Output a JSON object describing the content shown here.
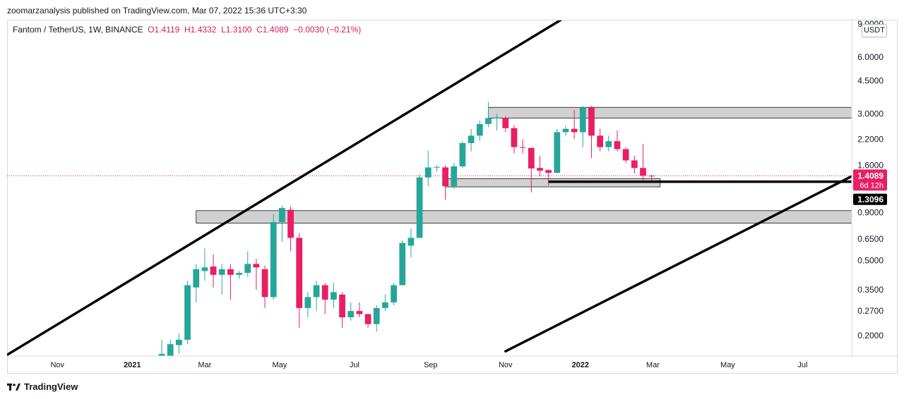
{
  "header": {
    "publisher": "zoomarzanalysis published on TradingView.com, Mar 07, 2022 15:36 UTC+3:30"
  },
  "legend": {
    "symbol": "Fantom / TetherUS, 1W, BINANCE",
    "open": "O1.4119",
    "high": "H1.4332",
    "low": "L1.3100",
    "close": "C1.4089",
    "change": "−0.0030 (−0.21%)"
  },
  "currency": "USDT",
  "footer": {
    "brand": "TradingView"
  },
  "colors": {
    "up": "#26a69a",
    "down": "#e91e63",
    "zone_fill": "#d1d1d1",
    "trendline": "#000000",
    "price_label": "#e91e63",
    "support_label": "#000000"
  },
  "chart_data": {
    "type": "candlestick",
    "title": "Fantom / TetherUS, 1W, BINANCE",
    "y_scale": "log",
    "ylim": [
      0.16,
      9.0
    ],
    "y_ticks": [
      "9.0000",
      "6.0000",
      "4.5000",
      "3.0000",
      "2.2000",
      "1.6000",
      "0.9000",
      "0.6500",
      "0.5000",
      "0.3500",
      "0.2700",
      "0.2000"
    ],
    "x_ticks": [
      "Nov",
      "2021",
      "Mar",
      "May",
      "Jul",
      "Sep",
      "Nov",
      "2022",
      "Mar",
      "May",
      "Jul"
    ],
    "x_tick_dates": [
      "2020-11-01",
      "2021-01-01",
      "2021-03-01",
      "2021-05-01",
      "2021-07-01",
      "2021-09-01",
      "2021-11-01",
      "2022-01-01",
      "2022-03-01",
      "2022-05-01",
      "2022-07-01"
    ],
    "xlim": [
      "2020-09-21",
      "2022-08-10"
    ],
    "last_price": {
      "value": 1.4089,
      "label": "1.4089",
      "countdown": "6d 12h"
    },
    "support_label": {
      "value": 1.3096,
      "label": "1.3096"
    },
    "candles": [
      {
        "date": "2021-01-25",
        "o": 0.12,
        "h": 0.19,
        "l": 0.11,
        "c": 0.16
      },
      {
        "date": "2021-02-01",
        "o": 0.155,
        "h": 0.19,
        "l": 0.145,
        "c": 0.18
      },
      {
        "date": "2021-02-08",
        "o": 0.178,
        "h": 0.205,
        "l": 0.16,
        "c": 0.19
      },
      {
        "date": "2021-02-15",
        "o": 0.19,
        "h": 0.39,
        "l": 0.18,
        "c": 0.37
      },
      {
        "date": "2021-02-22",
        "o": 0.36,
        "h": 0.48,
        "l": 0.3,
        "c": 0.45
      },
      {
        "date": "2021-03-01",
        "o": 0.44,
        "h": 0.58,
        "l": 0.39,
        "c": 0.46
      },
      {
        "date": "2021-03-08",
        "o": 0.465,
        "h": 0.54,
        "l": 0.36,
        "c": 0.42
      },
      {
        "date": "2021-03-15",
        "o": 0.42,
        "h": 0.48,
        "l": 0.33,
        "c": 0.45
      },
      {
        "date": "2021-03-22",
        "o": 0.45,
        "h": 0.48,
        "l": 0.31,
        "c": 0.42
      },
      {
        "date": "2021-03-29",
        "o": 0.42,
        "h": 0.44,
        "l": 0.4,
        "c": 0.43
      },
      {
        "date": "2021-04-05",
        "o": 0.43,
        "h": 0.56,
        "l": 0.41,
        "c": 0.48
      },
      {
        "date": "2021-04-12",
        "o": 0.48,
        "h": 0.51,
        "l": 0.35,
        "c": 0.46
      },
      {
        "date": "2021-04-19",
        "o": 0.45,
        "h": 0.47,
        "l": 0.28,
        "c": 0.32
      },
      {
        "date": "2021-04-26",
        "o": 0.32,
        "h": 0.88,
        "l": 0.31,
        "c": 0.8
      },
      {
        "date": "2021-05-03",
        "o": 0.8,
        "h": 0.98,
        "l": 0.63,
        "c": 0.95
      },
      {
        "date": "2021-05-10",
        "o": 0.93,
        "h": 0.97,
        "l": 0.56,
        "c": 0.66
      },
      {
        "date": "2021-05-17",
        "o": 0.66,
        "h": 0.7,
        "l": 0.22,
        "c": 0.28
      },
      {
        "date": "2021-05-24",
        "o": 0.28,
        "h": 0.34,
        "l": 0.25,
        "c": 0.32
      },
      {
        "date": "2021-05-31",
        "o": 0.32,
        "h": 0.39,
        "l": 0.27,
        "c": 0.37
      },
      {
        "date": "2021-06-07",
        "o": 0.37,
        "h": 0.38,
        "l": 0.26,
        "c": 0.31
      },
      {
        "date": "2021-06-14",
        "o": 0.31,
        "h": 0.38,
        "l": 0.28,
        "c": 0.34
      },
      {
        "date": "2021-06-21",
        "o": 0.33,
        "h": 0.34,
        "l": 0.22,
        "c": 0.25
      },
      {
        "date": "2021-06-28",
        "o": 0.25,
        "h": 0.3,
        "l": 0.24,
        "c": 0.27
      },
      {
        "date": "2021-07-05",
        "o": 0.27,
        "h": 0.3,
        "l": 0.25,
        "c": 0.26
      },
      {
        "date": "2021-07-12",
        "o": 0.26,
        "h": 0.26,
        "l": 0.22,
        "c": 0.23
      },
      {
        "date": "2021-07-19",
        "o": 0.23,
        "h": 0.29,
        "l": 0.21,
        "c": 0.28
      },
      {
        "date": "2021-07-26",
        "o": 0.28,
        "h": 0.33,
        "l": 0.27,
        "c": 0.3
      },
      {
        "date": "2021-08-02",
        "o": 0.3,
        "h": 0.38,
        "l": 0.29,
        "c": 0.37
      },
      {
        "date": "2021-08-09",
        "o": 0.37,
        "h": 0.64,
        "l": 0.37,
        "c": 0.62
      },
      {
        "date": "2021-08-16",
        "o": 0.6,
        "h": 0.74,
        "l": 0.52,
        "c": 0.66
      },
      {
        "date": "2021-08-23",
        "o": 0.66,
        "h": 1.43,
        "l": 0.66,
        "c": 1.38
      },
      {
        "date": "2021-08-30",
        "o": 1.38,
        "h": 1.92,
        "l": 1.24,
        "c": 1.56
      },
      {
        "date": "2021-09-06",
        "o": 1.56,
        "h": 1.6,
        "l": 1.48,
        "c": 1.57
      },
      {
        "date": "2021-09-13",
        "o": 1.56,
        "h": 1.6,
        "l": 1.05,
        "c": 1.24
      },
      {
        "date": "2021-09-20",
        "o": 1.24,
        "h": 1.65,
        "l": 1.2,
        "c": 1.58
      },
      {
        "date": "2021-09-27",
        "o": 1.58,
        "h": 2.15,
        "l": 1.55,
        "c": 2.1
      },
      {
        "date": "2021-10-04",
        "o": 2.1,
        "h": 2.5,
        "l": 1.9,
        "c": 2.3
      },
      {
        "date": "2021-10-11",
        "o": 2.3,
        "h": 2.76,
        "l": 2.15,
        "c": 2.65
      },
      {
        "date": "2021-10-18",
        "o": 2.65,
        "h": 3.48,
        "l": 2.55,
        "c": 2.85
      },
      {
        "date": "2021-10-25",
        "o": 2.85,
        "h": 3.0,
        "l": 2.45,
        "c": 2.87
      },
      {
        "date": "2021-11-01",
        "o": 2.86,
        "h": 2.92,
        "l": 2.4,
        "c": 2.52
      },
      {
        "date": "2021-11-08",
        "o": 2.52,
        "h": 2.62,
        "l": 1.85,
        "c": 2.0
      },
      {
        "date": "2021-11-15",
        "o": 2.0,
        "h": 2.2,
        "l": 1.85,
        "c": 1.99
      },
      {
        "date": "2021-11-22",
        "o": 1.98,
        "h": 1.99,
        "l": 1.15,
        "c": 1.54
      },
      {
        "date": "2021-11-29",
        "o": 1.55,
        "h": 1.8,
        "l": 1.4,
        "c": 1.5
      },
      {
        "date": "2021-12-06",
        "o": 1.51,
        "h": 1.52,
        "l": 1.25,
        "c": 1.46
      },
      {
        "date": "2021-12-13",
        "o": 1.46,
        "h": 2.5,
        "l": 1.45,
        "c": 2.4
      },
      {
        "date": "2021-12-20",
        "o": 2.4,
        "h": 2.6,
        "l": 2.3,
        "c": 2.5
      },
      {
        "date": "2021-12-27",
        "o": 2.5,
        "h": 3.15,
        "l": 2.2,
        "c": 2.4
      },
      {
        "date": "2022-01-03",
        "o": 2.4,
        "h": 3.3,
        "l": 2.0,
        "c": 3.25
      },
      {
        "date": "2022-01-10",
        "o": 3.25,
        "h": 3.3,
        "l": 1.75,
        "c": 2.3
      },
      {
        "date": "2022-01-17",
        "o": 2.3,
        "h": 2.5,
        "l": 1.9,
        "c": 2.0
      },
      {
        "date": "2022-01-24",
        "o": 2.0,
        "h": 2.3,
        "l": 1.9,
        "c": 2.15
      },
      {
        "date": "2022-01-31",
        "o": 2.15,
        "h": 2.45,
        "l": 1.9,
        "c": 1.95
      },
      {
        "date": "2022-02-07",
        "o": 1.95,
        "h": 2.0,
        "l": 1.65,
        "c": 1.7
      },
      {
        "date": "2022-02-14",
        "o": 1.7,
        "h": 1.8,
        "l": 1.45,
        "c": 1.55
      },
      {
        "date": "2022-02-21",
        "o": 1.55,
        "h": 2.08,
        "l": 1.33,
        "c": 1.41
      },
      {
        "date": "2022-02-28",
        "o": 1.41,
        "h": 1.43,
        "l": 1.31,
        "c": 1.409
      }
    ],
    "zones": [
      {
        "from": "2021-02-22",
        "to": "2022-08-10",
        "low": 0.79,
        "high": 0.92
      },
      {
        "from": "2021-10-18",
        "to": "2022-08-10",
        "low": 2.85,
        "high": 3.25
      },
      {
        "from": "2021-09-13",
        "to": "2022-03-07",
        "low": 1.23,
        "high": 1.36
      }
    ],
    "support_line": {
      "from": "2021-12-06",
      "to": "2022-08-10",
      "value": 1.3096
    },
    "trendlines": [
      {
        "points": [
          [
            "2020-09-21",
            0.158
          ],
          [
            "2021-12-20",
            9.8
          ]
        ]
      },
      {
        "points": [
          [
            "2021-11-01",
            0.165
          ],
          [
            "2022-08-10",
            1.4
          ]
        ]
      }
    ]
  }
}
